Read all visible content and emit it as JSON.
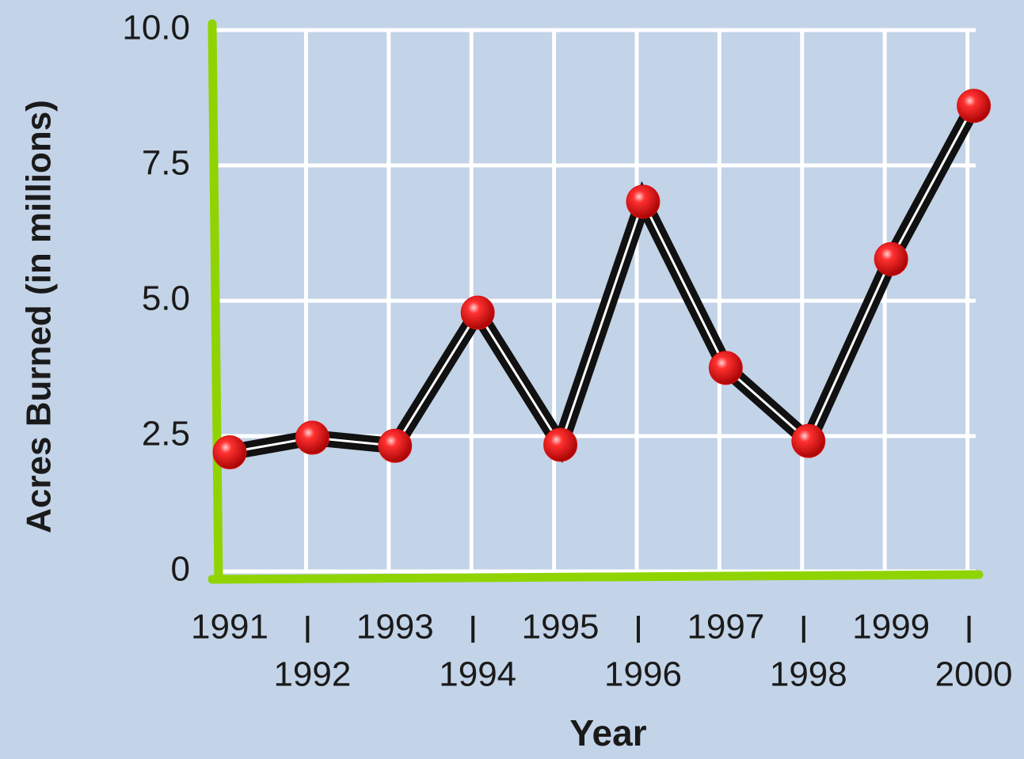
{
  "chart_data": {
    "type": "line",
    "x_label": "Year",
    "y_label": "Acres Burned (in millions)",
    "categories": [
      "1991",
      "1992",
      "1993",
      "1994",
      "1995",
      "1996",
      "1997",
      "1998",
      "1999",
      "2000"
    ],
    "series": [
      {
        "name": "Acres Burned",
        "color": "#111111",
        "values": [
          2.2,
          2.47,
          2.32,
          4.78,
          2.34,
          6.83,
          3.76,
          2.41,
          5.77,
          8.6
        ]
      }
    ],
    "marker_color": "#e01010",
    "ylim": [
      0,
      10
    ],
    "yticks": [
      0,
      2.5,
      {
        "value": 5,
        "label": "5.0"
      },
      7.5,
      {
        "value": 10,
        "label": "10.0"
      }
    ],
    "grid": true
  }
}
